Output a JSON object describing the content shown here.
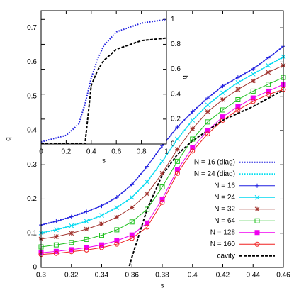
{
  "chart_data": [
    {
      "type": "line",
      "xlabel": "s",
      "ylabel": "q",
      "x": [
        0.3,
        0.31,
        0.32,
        0.33,
        0.34,
        0.35,
        0.36,
        0.37,
        0.38,
        0.39,
        0.4,
        0.41,
        0.42,
        0.43,
        0.44,
        0.45,
        0.46
      ],
      "xlim": [
        0.3,
        0.46
      ],
      "xticks": [
        0.3,
        0.32,
        0.34,
        0.36,
        0.38,
        0.4,
        0.42,
        0.44,
        0.46
      ],
      "ylim": [
        0,
        0.75
      ],
      "yticks": [
        0,
        0.1,
        0.2,
        0.3,
        0.4,
        0.5,
        0.6,
        0.7
      ],
      "legend": "lower right",
      "series": [
        {
          "name": "N = 16 (diag)",
          "color": "#1f1fe0",
          "dash": "dotted",
          "values": [
            0.124,
            0.135,
            0.148,
            0.163,
            0.18,
            0.205,
            0.242,
            0.295,
            0.356,
            0.41,
            0.455,
            0.495,
            0.53,
            0.555,
            0.58,
            0.612,
            0.646
          ]
        },
        {
          "name": "N = 24 (diag)",
          "color": "#00e0f0",
          "dash": "dotted",
          "values": [
            0.101,
            0.11,
            0.122,
            0.135,
            0.152,
            0.175,
            0.205,
            0.25,
            0.31,
            0.375,
            0.43,
            0.475,
            0.51,
            0.54,
            0.565,
            0.59,
            0.615
          ]
        },
        {
          "name": "N = 16",
          "color": "#1f1fe0",
          "marker": "plus",
          "values": [
            0.124,
            0.135,
            0.148,
            0.163,
            0.18,
            0.205,
            0.242,
            0.295,
            0.356,
            0.41,
            0.455,
            0.495,
            0.53,
            0.555,
            0.58,
            0.612,
            0.646
          ]
        },
        {
          "name": "N = 24",
          "color": "#00d8f0",
          "marker": "x",
          "values": [
            0.101,
            0.11,
            0.122,
            0.135,
            0.152,
            0.175,
            0.205,
            0.25,
            0.31,
            0.375,
            0.43,
            0.475,
            0.51,
            0.54,
            0.565,
            0.59,
            0.615
          ]
        },
        {
          "name": "N = 32",
          "color": "#a0322d",
          "marker": "star",
          "values": [
            0.083,
            0.09,
            0.1,
            0.112,
            0.127,
            0.147,
            0.175,
            0.215,
            0.275,
            0.345,
            0.405,
            0.455,
            0.49,
            0.52,
            0.545,
            0.57,
            0.59
          ]
        },
        {
          "name": "N = 64",
          "color": "#1ec01e",
          "marker": "square",
          "values": [
            0.06,
            0.066,
            0.073,
            0.082,
            0.094,
            0.11,
            0.133,
            0.17,
            0.235,
            0.31,
            0.375,
            0.425,
            0.46,
            0.49,
            0.515,
            0.535,
            0.555
          ]
        },
        {
          "name": "N = 128",
          "color": "#f000f0",
          "marker": "filled-square",
          "values": [
            0.043,
            0.047,
            0.052,
            0.058,
            0.066,
            0.078,
            0.095,
            0.13,
            0.2,
            0.285,
            0.35,
            0.4,
            0.44,
            0.47,
            0.495,
            0.515,
            0.535
          ]
        },
        {
          "name": "N = 160",
          "color": "#f02020",
          "marker": "circle",
          "values": [
            0.038,
            0.041,
            0.046,
            0.051,
            0.058,
            0.068,
            0.085,
            0.118,
            0.19,
            0.275,
            0.34,
            0.39,
            0.43,
            0.46,
            0.485,
            0.505,
            0.52
          ]
        },
        {
          "name": "cavity",
          "color": "#000000",
          "dash": "dashed",
          "x": [
            0.3,
            0.355,
            0.358,
            0.36,
            0.37,
            0.38,
            0.39,
            0.4,
            0.42,
            0.44,
            0.46
          ],
          "values": [
            0,
            0,
            0,
            0.03,
            0.17,
            0.27,
            0.33,
            0.37,
            0.43,
            0.47,
            0.518
          ]
        }
      ]
    },
    {
      "type": "line",
      "xlabel": "s",
      "ylabel": "q",
      "x": [
        0,
        0.2,
        0.3,
        0.35,
        0.4,
        0.45,
        0.5,
        0.6,
        0.8,
        1
      ],
      "xlim": [
        0,
        1
      ],
      "xticks": [
        0,
        0.2,
        0.4,
        0.6,
        0.8,
        1
      ],
      "ylim": [
        0,
        1.07
      ],
      "yticks": [
        0,
        0.2,
        0.4,
        0.6,
        0.8,
        1
      ],
      "series": [
        {
          "color": "#1f1fe0",
          "dash": "dotted",
          "values": [
            0.017,
            0.07,
            0.16,
            0.32,
            0.53,
            0.68,
            0.79,
            0.9,
            0.97,
            1.0
          ]
        },
        {
          "color": "#000000",
          "dash": "dashed",
          "values": [
            0,
            0,
            0,
            0,
            0.47,
            0.59,
            0.67,
            0.76,
            0.83,
            0.85
          ]
        }
      ]
    }
  ]
}
